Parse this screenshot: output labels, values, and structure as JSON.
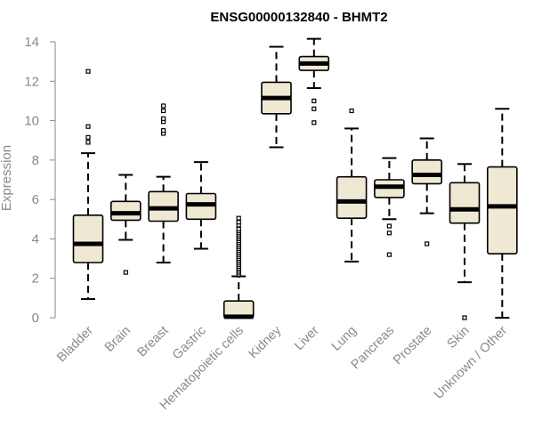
{
  "chart_data": {
    "type": "boxplot",
    "title": "ENSG00000132840 - BHMT2",
    "xlabel": "",
    "ylabel": "Expression",
    "ylim": [
      0,
      14
    ],
    "yticks": [
      0,
      2,
      4,
      6,
      8,
      10,
      12,
      14
    ],
    "box_fill": "#efe9d4",
    "stroke": "#000000",
    "categories": [
      "Bladder",
      "Brain",
      "Breast",
      "Gastric",
      "Hematopoietic cells",
      "Kidney",
      "Liver",
      "Lung",
      "Pancreas",
      "Prostate",
      "Skin",
      "Unknown / Other"
    ],
    "series": [
      {
        "name": "Bladder",
        "whisker_low": 0.95,
        "q1": 2.8,
        "median": 3.75,
        "q3": 5.2,
        "whisker_high": 8.35,
        "outliers": [
          8.9,
          9.15,
          9.7,
          12.5
        ]
      },
      {
        "name": "Brain",
        "whisker_low": 3.95,
        "q1": 4.95,
        "median": 5.3,
        "q3": 5.9,
        "whisker_high": 7.25,
        "outliers": [
          2.3
        ]
      },
      {
        "name": "Breast",
        "whisker_low": 2.8,
        "q1": 4.9,
        "median": 5.55,
        "q3": 6.4,
        "whisker_high": 7.15,
        "outliers": [
          9.35,
          9.5,
          9.95,
          10.1,
          10.5,
          10.75
        ]
      },
      {
        "name": "Gastric",
        "whisker_low": 3.5,
        "q1": 5.0,
        "median": 5.75,
        "q3": 6.3,
        "whisker_high": 7.9,
        "outliers": []
      },
      {
        "name": "Hematopoietic cells",
        "whisker_low": 0.0,
        "q1": 0.0,
        "median": 0.05,
        "q3": 0.85,
        "whisker_high": 2.1,
        "outliers": [
          2.2,
          2.3,
          2.4,
          2.5,
          2.6,
          2.7,
          2.8,
          2.9,
          3.0,
          3.1,
          3.2,
          3.3,
          3.4,
          3.5,
          3.6,
          3.7,
          3.8,
          3.9,
          4.0,
          4.1,
          4.2,
          4.3,
          4.4,
          4.5,
          4.7,
          4.85,
          5.05
        ]
      },
      {
        "name": "Kidney",
        "whisker_low": 8.65,
        "q1": 10.35,
        "median": 11.15,
        "q3": 11.95,
        "whisker_high": 13.75,
        "outliers": []
      },
      {
        "name": "Liver",
        "whisker_low": 11.65,
        "q1": 12.55,
        "median": 12.9,
        "q3": 13.25,
        "whisker_high": 14.15,
        "outliers": [
          9.9,
          10.6,
          11.0
        ]
      },
      {
        "name": "Lung",
        "whisker_low": 2.85,
        "q1": 5.05,
        "median": 5.9,
        "q3": 7.15,
        "whisker_high": 9.6,
        "outliers": [
          10.5
        ]
      },
      {
        "name": "Pancreas",
        "whisker_low": 5.0,
        "q1": 6.1,
        "median": 6.65,
        "q3": 7.0,
        "whisker_high": 8.1,
        "outliers": [
          3.2,
          4.3,
          4.65
        ]
      },
      {
        "name": "Prostate",
        "whisker_low": 5.3,
        "q1": 6.8,
        "median": 7.25,
        "q3": 8.0,
        "whisker_high": 9.1,
        "outliers": [
          3.75
        ]
      },
      {
        "name": "Skin",
        "whisker_low": 1.8,
        "q1": 4.8,
        "median": 5.5,
        "q3": 6.85,
        "whisker_high": 7.8,
        "outliers": [
          0.0
        ]
      },
      {
        "name": "Unknown / Other",
        "whisker_low": 0.0,
        "q1": 3.25,
        "median": 5.65,
        "q3": 7.65,
        "whisker_high": 10.6,
        "outliers": []
      }
    ]
  }
}
